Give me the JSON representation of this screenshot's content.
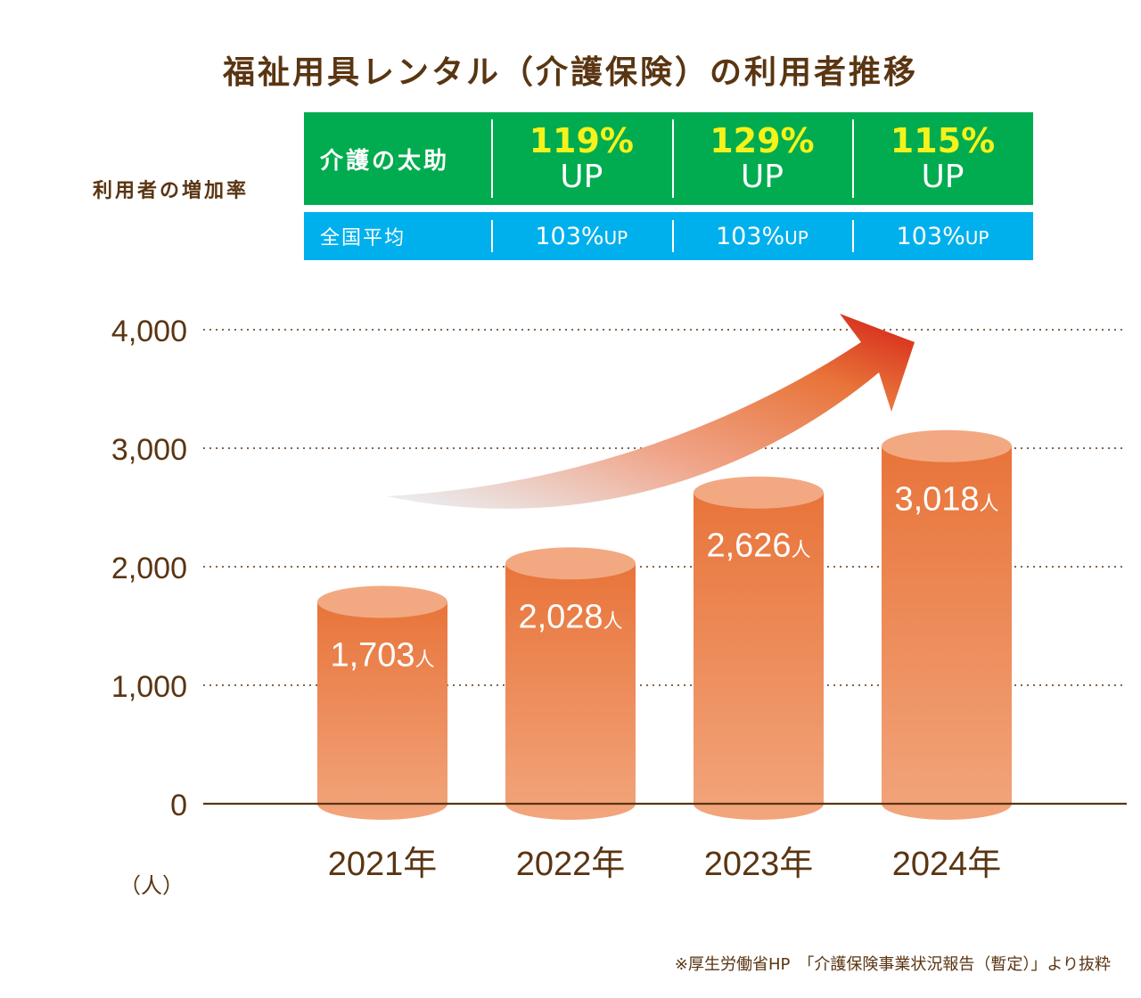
{
  "title": "福祉用具レンタル（介護保険）の利用者推移",
  "increase_rate": {
    "label": "利用者の増加率",
    "company": {
      "name": "介護の太助",
      "rates": [
        {
          "pct": "119%",
          "up": "UP"
        },
        {
          "pct": "129%",
          "up": "UP"
        },
        {
          "pct": "115%",
          "up": "UP"
        }
      ]
    },
    "national": {
      "name": "全国平均",
      "rates": [
        {
          "pct": "103%",
          "up": "UP"
        },
        {
          "pct": "103%",
          "up": "UP"
        },
        {
          "pct": "103%",
          "up": "UP"
        }
      ]
    }
  },
  "chart_data": {
    "type": "bar",
    "categories": [
      "2021年",
      "2022年",
      "2023年",
      "2024年"
    ],
    "values": [
      1703,
      2028,
      2626,
      3018
    ],
    "value_labels": [
      "1,703",
      "2,028",
      "2,626",
      "3,018"
    ],
    "value_unit": "人",
    "ylabel": "（人）",
    "ylim": [
      0,
      4000
    ],
    "yticks": [
      "0",
      "1,000",
      "2,000",
      "3,000",
      "4,000"
    ],
    "grid": true
  },
  "colors": {
    "text": "#5a3512",
    "green": "#00ac4f",
    "blue": "#00b0ec",
    "highlight": "#f6f31a",
    "bar_top": "#e8743a",
    "bar_bottom": "#f2a57c",
    "arrow": "#d42016"
  },
  "footnote": "※厚生労働省HP　「介護保険事業状況報告（暫定）」より抜粋"
}
